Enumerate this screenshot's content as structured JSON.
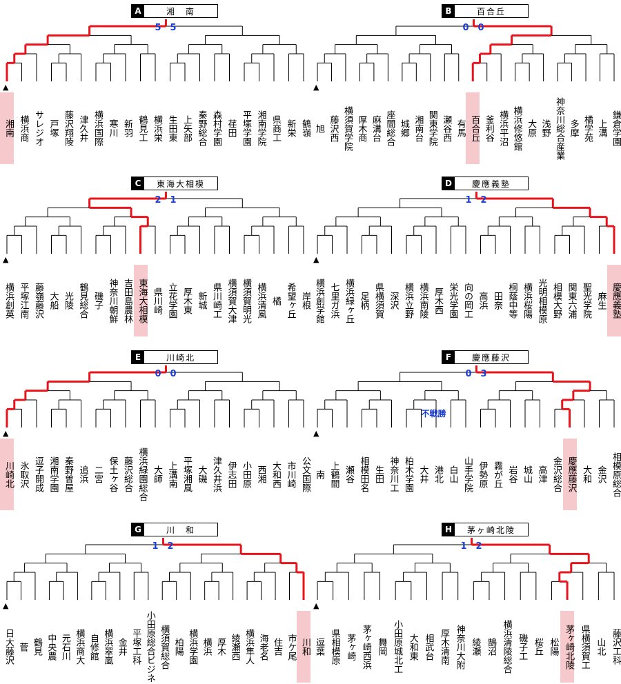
{
  "blocks": [
    {
      "letter": "A",
      "name": "湘　南",
      "top_score": [
        "5",
        "5"
      ],
      "teams": [
        "湘南",
        "横浜商",
        "サレジオ",
        "戸塚",
        "藤沢翔陵",
        "津久井",
        "横浜国際",
        "寒川",
        "新羽",
        "鶴見工",
        "横浜栄",
        "生田東",
        "上矢部",
        "秦野総合",
        "森村学園",
        "荏田",
        "平塚学園",
        "湘南学院",
        "県商工",
        "新栄",
        "鶴嶺"
      ],
      "highlight": [
        0
      ],
      "seed_index": 0
    },
    {
      "letter": "B",
      "name": "百合丘",
      "top_score": [
        "0",
        "0"
      ],
      "teams": [
        "旭",
        "藤沢西",
        "横須賀学院",
        "厚木商",
        "麻溝台",
        "座間総合",
        "城郷",
        "湘南台",
        "関東学院",
        "瀬谷西",
        "有馬",
        "百合丘",
        "釜利谷",
        "横浜平沼",
        "横浜修悠館",
        "大原",
        "浅野",
        "神奈川総合産業",
        "多摩",
        "橘学苑",
        "上溝",
        "鎌倉学園"
      ],
      "highlight": [
        11
      ],
      "seed_index": 0
    },
    {
      "letter": "C",
      "name": "東海大相模",
      "top_score": [
        "2",
        "1"
      ],
      "teams": [
        "横浜創英",
        "平塚江南",
        "藤嶺藤沢",
        "大船",
        "光陵",
        "鶴見総合",
        "磯子",
        "神奈川朝鮮",
        "吉田島農林",
        "東海大相模",
        "県川崎",
        "立花学園",
        "厚木東",
        "新城",
        "県川崎工",
        "横須賀大津",
        "横須賀明光",
        "横浜清風",
        "橘",
        "希望ヶ丘",
        "岸根"
      ],
      "highlight": [
        9
      ],
      "seed_index": 0
    },
    {
      "letter": "D",
      "name": "慶應義塾",
      "top_score": [
        "1",
        "2"
      ],
      "teams": [
        "横浜創学館",
        "七里ガ浜",
        "横浜緑ヶ丘",
        "足柄",
        "県横須賀",
        "深沢",
        "横浜立野",
        "横浜南陵",
        "厚木西",
        "栄光学園",
        "向の岡工",
        "高浜",
        "田奈",
        "桐蔭中等",
        "横浜桜陽",
        "光明相模原",
        "相模大野",
        "関東六浦",
        "聖光学院",
        "麻生",
        "慶應義塾"
      ],
      "highlight": [
        20
      ],
      "seed_index": 0
    },
    {
      "letter": "E",
      "name": "川崎北",
      "top_score": [
        "0",
        "0"
      ],
      "teams": [
        "川崎北",
        "氷取沢",
        "逗子開成",
        "湘南学園",
        "秦野曽屋",
        "追浜",
        "二宮",
        "保土ヶ谷",
        "藤沢総合",
        "横浜緑園総合",
        "大師",
        "上溝南",
        "平塚湘風",
        "大磯",
        "津久井浜",
        "伊志田",
        "小田原",
        "西湘",
        "大和西",
        "市川崎",
        "公文国際"
      ],
      "highlight": [
        0
      ],
      "seed_index": 0
    },
    {
      "letter": "F",
      "name": "慶應藤沢",
      "top_score": [
        "0",
        "3"
      ],
      "teams": [
        "南",
        "上鶴間",
        "瀬谷",
        "相模田名",
        "生田",
        "神奈川工",
        "柏木学園",
        "大井",
        "港北",
        "白山",
        "山手学院",
        "伊勢原",
        "霧が丘",
        "岩谷",
        "城山",
        "高津",
        "金沢総合",
        "慶應藤沢",
        "大和",
        "金沢",
        "相模原総合"
      ],
      "highlight": [
        17
      ],
      "seed_index": 0,
      "note": "不戦勝"
    },
    {
      "letter": "G",
      "name": "川　和",
      "top_score": [
        "1",
        "2"
      ],
      "teams": [
        "日大藤沢",
        "菅",
        "鶴見",
        "中央農",
        "元石川",
        "横浜商大",
        "自修館",
        "横浜翠嵐",
        "金井",
        "平塚工科",
        "小田原総合ビジネ",
        "横須賀総合",
        "柏陽",
        "横浜学園",
        "横浜",
        "厚木",
        "綾瀬西",
        "横浜隼人",
        "海老名",
        "住吉",
        "市ケ尾",
        "川和"
      ],
      "highlight": [
        21
      ],
      "seed_index": 0
    },
    {
      "letter": "H",
      "name": "茅ヶ崎北陵",
      "top_score": [
        "1",
        "2"
      ],
      "teams": [
        "逗葉",
        "県相模原",
        "茅ヶ崎",
        "茅ヶ崎西浜",
        "舞岡",
        "小田原城北工",
        "大和東",
        "相武台",
        "厚木清南",
        "神奈川大附",
        "綾瀬",
        "鵠沼",
        "横浜清陵総合",
        "磯子工",
        "桜丘",
        "松陽",
        "茅ヶ崎北陵",
        "県横須賀工",
        "山北",
        "藤沢工科"
      ],
      "highlight": [
        16
      ],
      "seed_index": 0
    }
  ],
  "colors": {
    "win_line": "#e8141c",
    "line": "#000000",
    "score": "#1a3fd1",
    "highlight_bg": "#f6c9cc"
  }
}
